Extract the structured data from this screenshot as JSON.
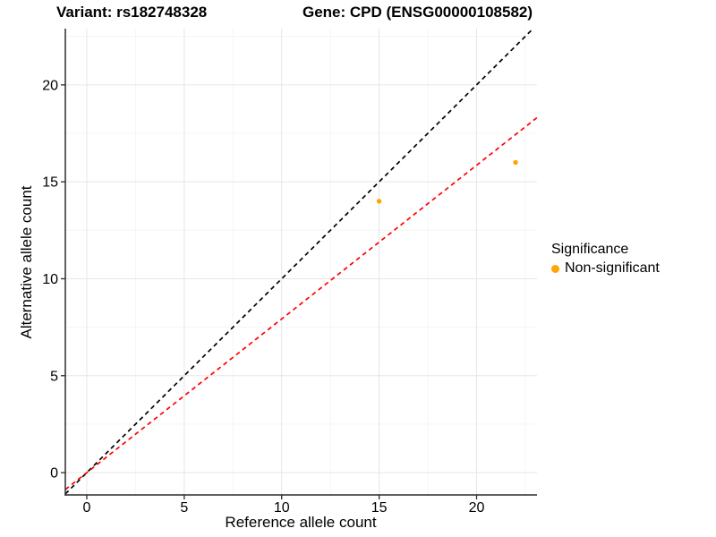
{
  "titles": {
    "left": "Variant: rs182748328",
    "right": "Gene: CPD (ENSG00000108582)"
  },
  "axes": {
    "x_label": "Reference allele count",
    "y_label": "Alternative allele count"
  },
  "legend": {
    "title": "Significance",
    "items": [
      {
        "label": "Non-significant",
        "color": "#FFA500"
      }
    ]
  },
  "colors": {
    "point": "#FFA500",
    "identity_line": "#000000",
    "fit_line": "#FF0000",
    "grid_major": "#E6E6E6",
    "grid_minor": "#F5F5F5",
    "axis": "#2B2B2B",
    "text": "#000000",
    "background": "#FFFFFF"
  },
  "chart_data": {
    "type": "scatter",
    "title": "Variant: rs182748328 | Gene: CPD (ENSG00000108582)",
    "xlabel": "Reference allele count",
    "ylabel": "Alternative allele count",
    "series": [
      {
        "name": "Non-significant",
        "color": "#FFA500",
        "points": [
          {
            "x": 15,
            "y": 14
          },
          {
            "x": 22,
            "y": 16
          }
        ]
      }
    ],
    "lines": [
      {
        "name": "identity",
        "slope": 1.0,
        "intercept": 0,
        "color": "#000000",
        "style": "dashed"
      },
      {
        "name": "fit",
        "slope": 0.7927,
        "intercept": 0,
        "color": "#FF0000",
        "style": "dashed"
      }
    ],
    "x_ticks": [
      0,
      5,
      10,
      15,
      20
    ],
    "y_ticks": [
      0,
      5,
      10,
      15,
      20
    ],
    "xlim": [
      -1.1,
      23.1
    ],
    "ylim": [
      -1.15,
      22.9
    ],
    "grid": "major+minor",
    "legend_position": "right"
  }
}
